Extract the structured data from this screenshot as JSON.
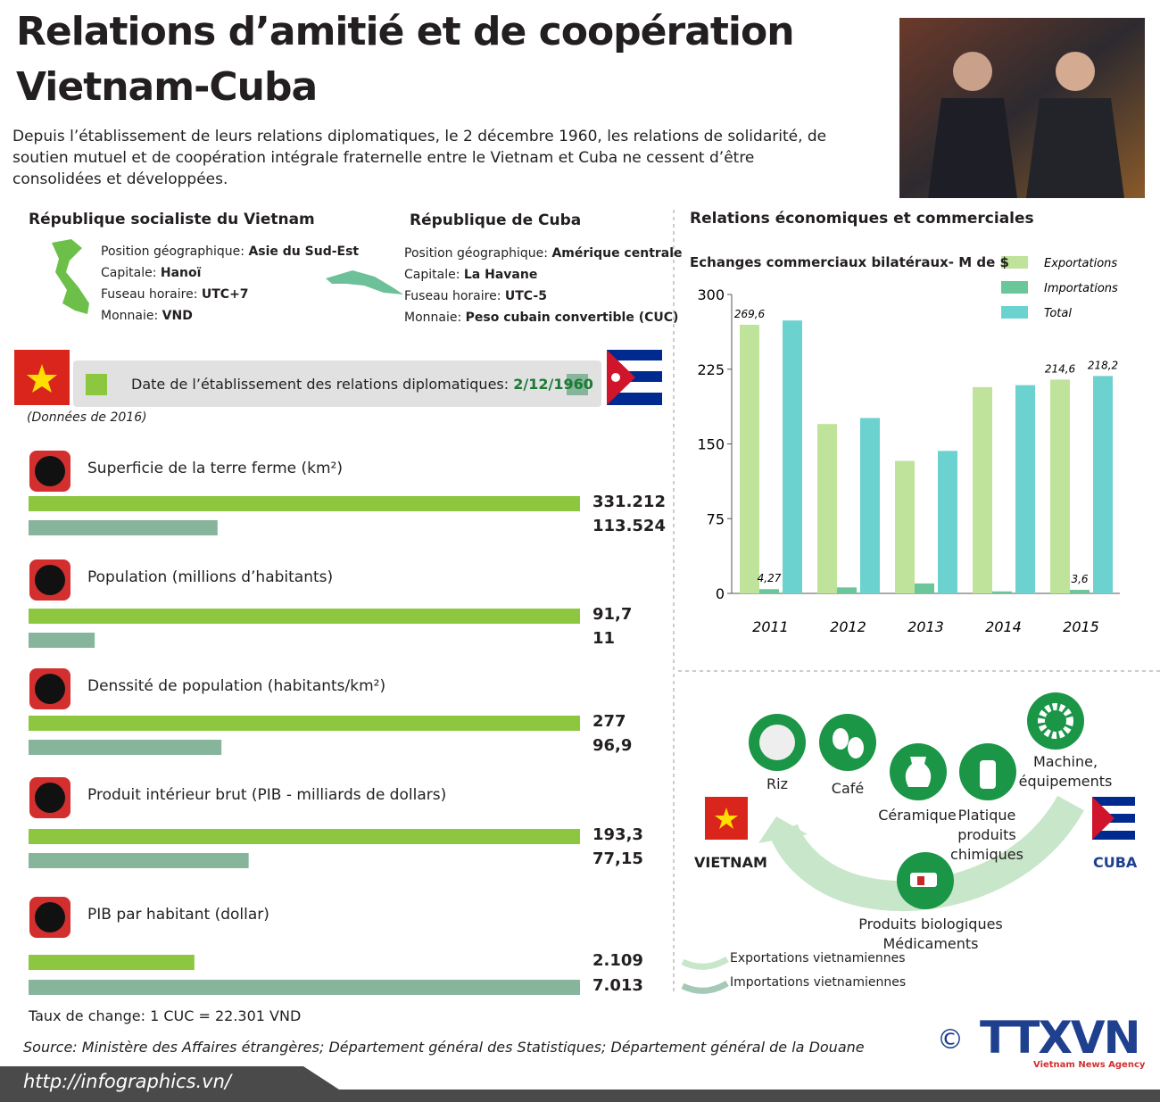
{
  "header": {
    "title_line1": "Relations d’amitié et de coopération",
    "title_line2": "Vietnam-Cuba",
    "intro": "Depuis l’établissement de leurs relations diplomatiques, le 2 décembre 1960, les relations de solidarité, de soutien mutuel et de coopération intégrale fraternelle  entre le Vietnam et Cuba ne cessent d’être consolidées et développées."
  },
  "vietnam": {
    "name": "République socialiste du Vietnam",
    "facts": [
      {
        "label": "Position géographique:",
        "value": "Asie du Sud-Est"
      },
      {
        "label": "Capitale:",
        "value": "Hanoï"
      },
      {
        "label": "Fuseau horaire:",
        "value": "UTC+7"
      },
      {
        "label": "Monnaie:",
        "value": "VND"
      }
    ]
  },
  "cuba": {
    "name": "République de Cuba",
    "facts": [
      {
        "label": "Position géographique:",
        "value": "Amérique centrale"
      },
      {
        "label": "Capitale:",
        "value": "La Havane"
      },
      {
        "label": "Fuseau horaire:",
        "value": "UTC-5"
      },
      {
        "label": "Monnaie:",
        "value": "Peso cubain convertible (CUC)"
      }
    ]
  },
  "diplomatic": {
    "label": "Date de l’établissement des relations diplomatiques:",
    "date": "2/12/1960"
  },
  "data_year": "(Données de 2016)",
  "exchange_rate": "Taux de change: 1 CUC = 22.301 VND",
  "source": "Source: Ministère des Affaires étrangères; Département général des Statistiques; Département général de la Douane",
  "url": "http://infographics.vn/",
  "trade_title": "Relations économiques et commerciales",
  "goods": {
    "items": [
      "Riz",
      "Café",
      "Céramique",
      "Platique produits chimiques",
      "Machine, équipements",
      "Produits biologiques Médicaments"
    ],
    "vietnam": "VIETNAM",
    "cuba": "CUBA",
    "legend": [
      "Exportations vietnamiennes",
      "Importations vietnamiennes"
    ]
  },
  "logo": {
    "name": "TTXVN",
    "subtitle": "Vietnam News Agency",
    "copyright": "©"
  },
  "chart_data": [
    {
      "type": "hbar",
      "title": "Superficie de la terre ferme (km²)",
      "values": [
        331212,
        113524
      ],
      "value_labels": [
        "331.212",
        "113.524"
      ],
      "colors": [
        "#8dc63f",
        "#86b59c"
      ]
    },
    {
      "type": "hbar",
      "title": "Population (millions d’habitants)",
      "values": [
        91.7,
        11
      ],
      "value_labels": [
        "91,7",
        "11"
      ],
      "colors": [
        "#8dc63f",
        "#86b59c"
      ]
    },
    {
      "type": "hbar",
      "title": "Denssité de population (habitants/km²)",
      "values": [
        277,
        96.9
      ],
      "value_labels": [
        "277",
        "96,9"
      ],
      "colors": [
        "#8dc63f",
        "#86b59c"
      ]
    },
    {
      "type": "hbar",
      "title": "Produit intérieur brut (PIB - milliards de dollars)",
      "values": [
        193.3,
        77.15
      ],
      "value_labels": [
        "193,3",
        "77,15"
      ],
      "colors": [
        "#8dc63f",
        "#86b59c"
      ]
    },
    {
      "type": "hbar",
      "title": "PIB par habitant (dollar)",
      "values": [
        2109,
        7013
      ],
      "value_labels": [
        "2.109",
        "7.013"
      ],
      "colors": [
        "#8dc63f",
        "#86b59c"
      ]
    },
    {
      "type": "bar",
      "title": "Echanges commerciaux bilatéraux- M de $",
      "categories": [
        "2011",
        "2012",
        "2013",
        "2014",
        "2015"
      ],
      "series": [
        {
          "name": "Exportations",
          "color": "#c0e39b",
          "values": [
            269.6,
            170,
            133,
            207,
            214.6
          ],
          "value_labels": [
            "269,6",
            null,
            null,
            null,
            "214,6"
          ]
        },
        {
          "name": "Importations",
          "color": "#6cc69b",
          "values": [
            4.27,
            6,
            10,
            2,
            3.6
          ],
          "value_labels": [
            "4,27",
            null,
            null,
            null,
            "3,6"
          ]
        },
        {
          "name": "Total",
          "color": "#6bd2cf",
          "values": [
            273.87,
            176,
            143,
            209,
            218.2
          ],
          "value_labels": [
            null,
            null,
            null,
            null,
            "218,2"
          ]
        }
      ],
      "ylim": [
        0,
        300
      ],
      "yticks": [
        0,
        75,
        150,
        225,
        300
      ]
    }
  ]
}
